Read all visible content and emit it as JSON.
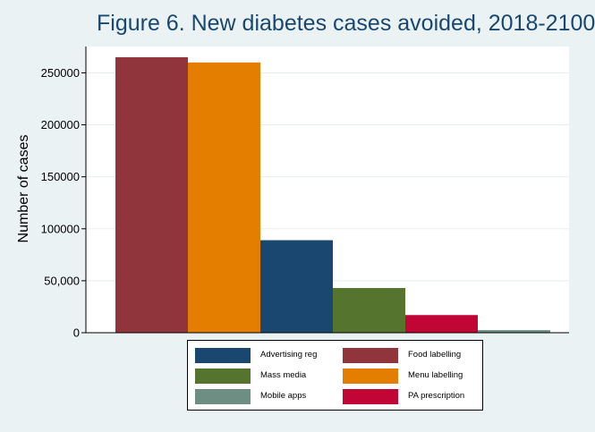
{
  "chart_data": {
    "type": "bar",
    "title": "Figure 6. New diabetes cases avoided, 2018-2100",
    "ylabel": "Number of cases",
    "xlabel": "",
    "ylim": [
      0,
      275000
    ],
    "yticks": [
      0,
      50000,
      100000,
      150000,
      200000,
      250000
    ],
    "ytick_labels": [
      "0",
      "50,000",
      "100000",
      "150000",
      "200000",
      "250000"
    ],
    "grid": true,
    "legend_position": "bottom",
    "series": [
      {
        "name": "Food labelling",
        "value": 265000,
        "color": "#90353b"
      },
      {
        "name": "Menu labelling",
        "value": 260000,
        "color": "#e37e00"
      },
      {
        "name": "Advertising reg",
        "value": 89000,
        "color": "#1a476f"
      },
      {
        "name": "Mass media",
        "value": 43000,
        "color": "#55752f"
      },
      {
        "name": "PA prescription",
        "value": 17000,
        "color": "#c10534"
      },
      {
        "name": "Mobile apps",
        "value": 2500,
        "color": "#6e8e84"
      }
    ],
    "legend_order": [
      "Advertising reg",
      "Food labelling",
      "Mass media",
      "Menu labelling",
      "Mobile apps",
      "PA prescription"
    ]
  }
}
